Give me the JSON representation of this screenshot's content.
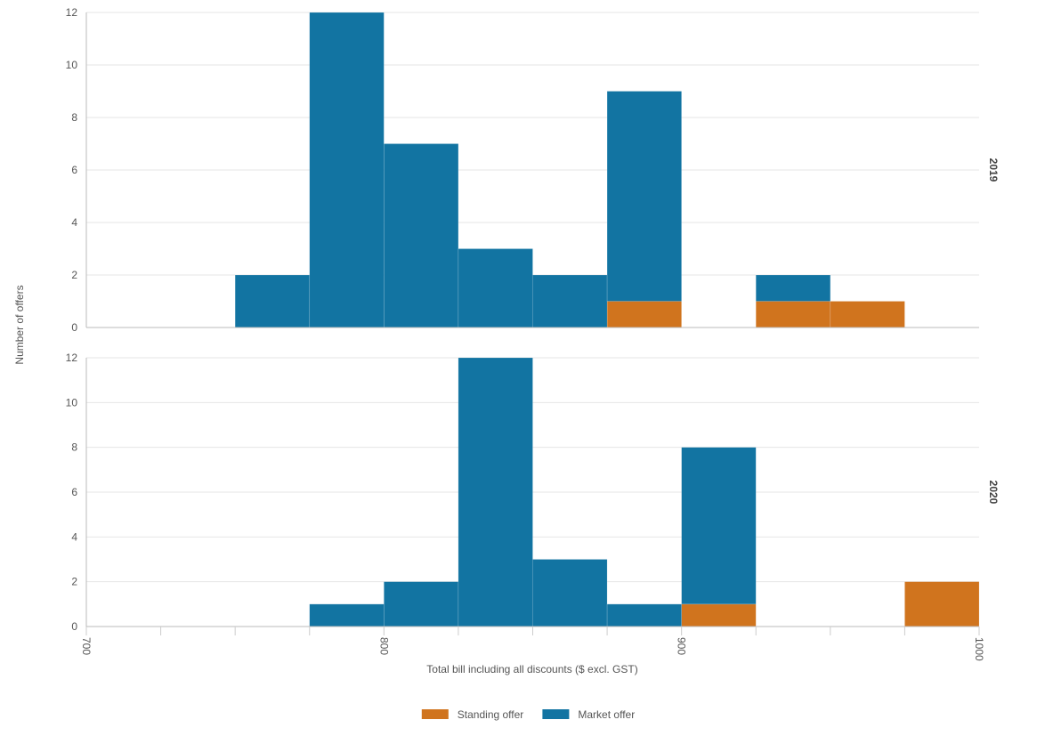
{
  "chart_data": {
    "type": "bar",
    "subtype": "stacked-histogram-faceted",
    "xlabel": "Total bill including all discounts ($ excl. GST)",
    "ylabel": "Number of offers",
    "xlim": [
      700,
      1000
    ],
    "x_ticks": [
      "700",
      "800",
      "900",
      "1000"
    ],
    "bin_width": 25,
    "bins": [
      700,
      725,
      750,
      775,
      800,
      825,
      850,
      875,
      900,
      925,
      950,
      975
    ],
    "ylim": [
      0,
      12
    ],
    "y_ticks": [
      "0",
      "2",
      "4",
      "6",
      "8",
      "10",
      "12"
    ],
    "legend": {
      "position": "bottom-center",
      "items": [
        {
          "name": "Standing offer",
          "color": "#D0741E"
        },
        {
          "name": "Market offer",
          "color": "#1274A2"
        }
      ]
    },
    "facets": [
      {
        "label": "2019",
        "series": [
          {
            "name": "Standing offer",
            "color": "#D0741E",
            "values": [
              0,
              0,
              0,
              0,
              0,
              0,
              0,
              1,
              0,
              1,
              1,
              0
            ]
          },
          {
            "name": "Market offer",
            "color": "#1274A2",
            "values": [
              0,
              0,
              2,
              12,
              7,
              3,
              2,
              8,
              0,
              1,
              0,
              0
            ]
          }
        ]
      },
      {
        "label": "2020",
        "series": [
          {
            "name": "Standing offer",
            "color": "#D0741E",
            "values": [
              0,
              0,
              0,
              0,
              0,
              0,
              0,
              0,
              1,
              0,
              0,
              2
            ]
          },
          {
            "name": "Market offer",
            "color": "#1274A2",
            "values": [
              0,
              0,
              0,
              1,
              2,
              12,
              3,
              1,
              7,
              0,
              0,
              0
            ]
          }
        ]
      }
    ],
    "grid": true
  }
}
